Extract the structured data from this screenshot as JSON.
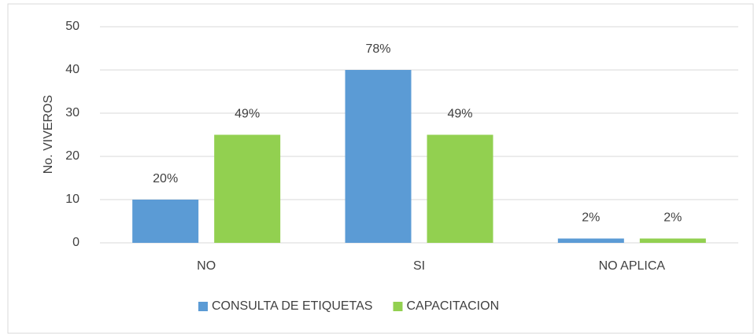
{
  "chart_data": {
    "type": "bar",
    "y_label": "No. VIVEROS",
    "categories": [
      "NO",
      "SI",
      "NO APLICA"
    ],
    "series": [
      {
        "name": "CONSULTA DE ETIQUETAS",
        "color": "#5b9bd5",
        "values": [
          10,
          40,
          1
        ],
        "value_labels": [
          "20%",
          "78%",
          "2%"
        ]
      },
      {
        "name": "CAPACITACION",
        "color": "#92d050",
        "values": [
          25,
          25,
          1
        ],
        "value_labels": [
          "49%",
          "49%",
          "2%"
        ]
      }
    ],
    "ylim": [
      0,
      50
    ],
    "yticks": [
      0,
      10,
      20,
      30,
      40,
      50
    ],
    "grid": true,
    "legend": "bottom"
  }
}
